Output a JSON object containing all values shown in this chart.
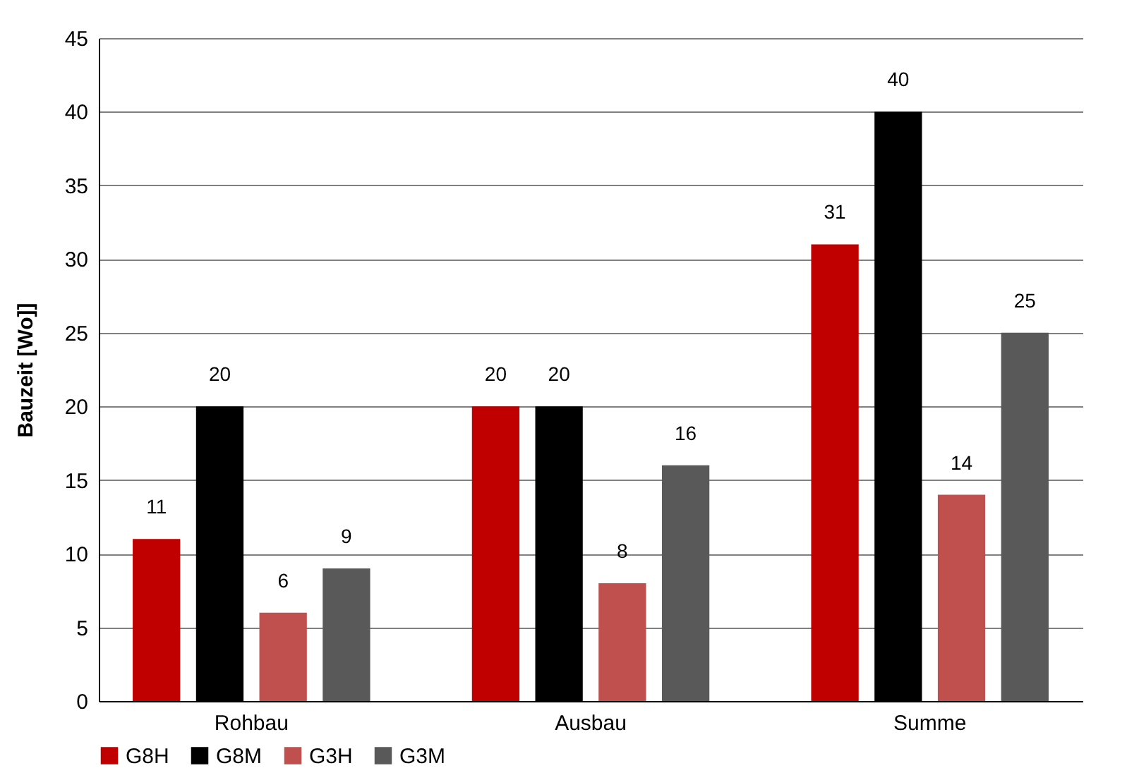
{
  "chart_data": {
    "type": "bar",
    "ylabel": "Bauzeit [Wo]]",
    "categories": [
      "Rohbau",
      "Ausbau",
      "Summe"
    ],
    "series": [
      {
        "name": "G8H",
        "color": "#c00000",
        "values": [
          11,
          20,
          31
        ]
      },
      {
        "name": "G8M",
        "color": "#000000",
        "values": [
          20,
          20,
          40
        ]
      },
      {
        "name": "G3H",
        "color": "#c0504d",
        "values": [
          6,
          8,
          14
        ]
      },
      {
        "name": "G3M",
        "color": "#595959",
        "values": [
          9,
          16,
          25
        ]
      }
    ],
    "ylim": [
      0,
      45
    ],
    "yticks": [
      0,
      5,
      10,
      15,
      20,
      25,
      30,
      35,
      40,
      45
    ],
    "grid": "y",
    "legend": "bottom",
    "data_labels": true
  }
}
